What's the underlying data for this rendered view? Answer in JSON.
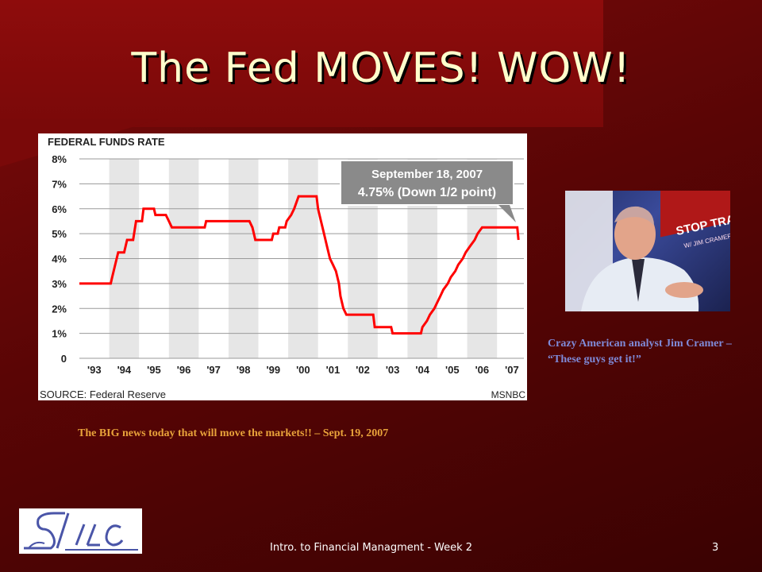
{
  "slide": {
    "title": "The Fed MOVES!  WOW!",
    "chart_caption": "The BIG news today that will move the markets!! – Sept. 19, 2007",
    "photo_caption": "Crazy American analyst Jim Cramer – “These guys get it!”",
    "footer": "Intro. to Financial Managment - Week 2",
    "page_number": "3"
  },
  "photo": {
    "banner_text_1": "STOP TRAD",
    "banner_text_2": "W/ JIM CRAMER"
  },
  "chart_data": {
    "type": "line",
    "title": "FEDERAL FUNDS RATE",
    "source": "SOURCE: Federal Reserve",
    "credit": "MSNBC",
    "y_ticks": [
      "8%",
      "7%",
      "6%",
      "5%",
      "4%",
      "3%",
      "2%",
      "1%",
      "0"
    ],
    "x_ticks": [
      "'93",
      "'94",
      "'95",
      "'96",
      "'97",
      "'98",
      "'99",
      "'00",
      "'01",
      "'02",
      "'03",
      "'04",
      "'05",
      "'06",
      "'07"
    ],
    "ylim": [
      0,
      8
    ],
    "xlim": [
      1993,
      2007.9
    ],
    "line_color": "#ff0000",
    "annotation": {
      "line1": "September 18, 2007",
      "line2": "4.75% (Down 1/2 point)"
    },
    "series": [
      {
        "values": [
          [
            1993.0,
            3.0
          ],
          [
            1994.05,
            3.0
          ],
          [
            1994.1,
            3.25
          ],
          [
            1994.2,
            3.75
          ],
          [
            1994.3,
            4.25
          ],
          [
            1994.5,
            4.25
          ],
          [
            1994.6,
            4.75
          ],
          [
            1994.8,
            4.75
          ],
          [
            1994.9,
            5.5
          ],
          [
            1995.1,
            5.5
          ],
          [
            1995.15,
            6.0
          ],
          [
            1995.5,
            6.0
          ],
          [
            1995.55,
            5.75
          ],
          [
            1995.9,
            5.75
          ],
          [
            1996.0,
            5.5
          ],
          [
            1996.1,
            5.25
          ],
          [
            1997.2,
            5.25
          ],
          [
            1997.25,
            5.5
          ],
          [
            1998.7,
            5.5
          ],
          [
            1998.8,
            5.25
          ],
          [
            1998.9,
            4.75
          ],
          [
            1999.45,
            4.75
          ],
          [
            1999.5,
            5.0
          ],
          [
            1999.65,
            5.0
          ],
          [
            1999.7,
            5.25
          ],
          [
            1999.9,
            5.25
          ],
          [
            1999.95,
            5.5
          ],
          [
            2000.1,
            5.75
          ],
          [
            2000.2,
            6.0
          ],
          [
            2000.35,
            6.5
          ],
          [
            2000.95,
            6.5
          ],
          [
            2001.0,
            6.0
          ],
          [
            2001.1,
            5.5
          ],
          [
            2001.2,
            5.0
          ],
          [
            2001.3,
            4.5
          ],
          [
            2001.4,
            4.0
          ],
          [
            2001.5,
            3.75
          ],
          [
            2001.6,
            3.5
          ],
          [
            2001.7,
            3.0
          ],
          [
            2001.75,
            2.5
          ],
          [
            2001.85,
            2.0
          ],
          [
            2001.95,
            1.75
          ],
          [
            2002.85,
            1.75
          ],
          [
            2002.9,
            1.25
          ],
          [
            2003.45,
            1.25
          ],
          [
            2003.5,
            1.0
          ],
          [
            2004.45,
            1.0
          ],
          [
            2004.5,
            1.25
          ],
          [
            2004.65,
            1.5
          ],
          [
            2004.75,
            1.75
          ],
          [
            2004.9,
            2.0
          ],
          [
            2005.0,
            2.25
          ],
          [
            2005.1,
            2.5
          ],
          [
            2005.2,
            2.75
          ],
          [
            2005.35,
            3.0
          ],
          [
            2005.45,
            3.25
          ],
          [
            2005.6,
            3.5
          ],
          [
            2005.7,
            3.75
          ],
          [
            2005.85,
            4.0
          ],
          [
            2005.95,
            4.25
          ],
          [
            2006.1,
            4.5
          ],
          [
            2006.25,
            4.75
          ],
          [
            2006.35,
            5.0
          ],
          [
            2006.5,
            5.25
          ],
          [
            2007.68,
            5.25
          ],
          [
            2007.72,
            4.75
          ]
        ]
      }
    ]
  }
}
